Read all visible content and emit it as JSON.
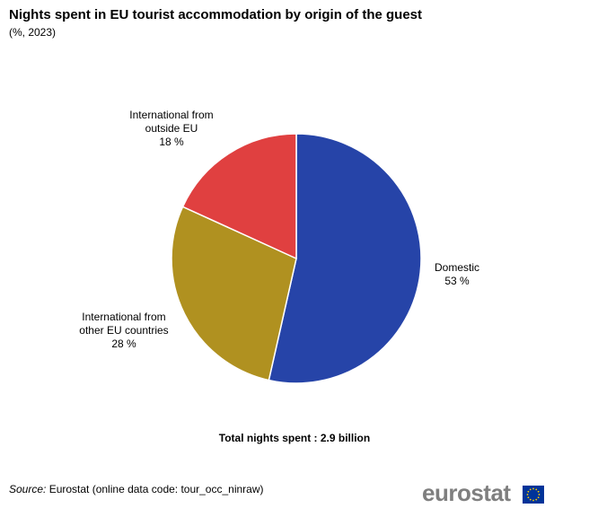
{
  "title": "Nights spent in EU tourist accommodation by origin of the guest",
  "subtitle": "(%, 2023)",
  "chart_data": {
    "type": "pie",
    "start_angle_deg": 0,
    "direction": "clockwise",
    "slices": [
      {
        "lines": [
          "Domestic",
          "53 %"
        ],
        "value": 53,
        "color": "#2644a8"
      },
      {
        "lines": [
          "International  from",
          "other EU countries",
          "28 %"
        ],
        "value": 28,
        "color": "#b09120"
      },
      {
        "lines": [
          "International  from",
          "outside EU",
          "18 %"
        ],
        "value": 18,
        "color": "#e04040"
      }
    ]
  },
  "total_note": "Total nights spent  : 2.9 billion",
  "source": {
    "label": "Source:",
    "text": " Eurostat (online data code: tour_occ_ninraw)"
  },
  "logo": {
    "text": "eurostat",
    "flag_color": "#003399",
    "star_color": "#ffcc00"
  }
}
